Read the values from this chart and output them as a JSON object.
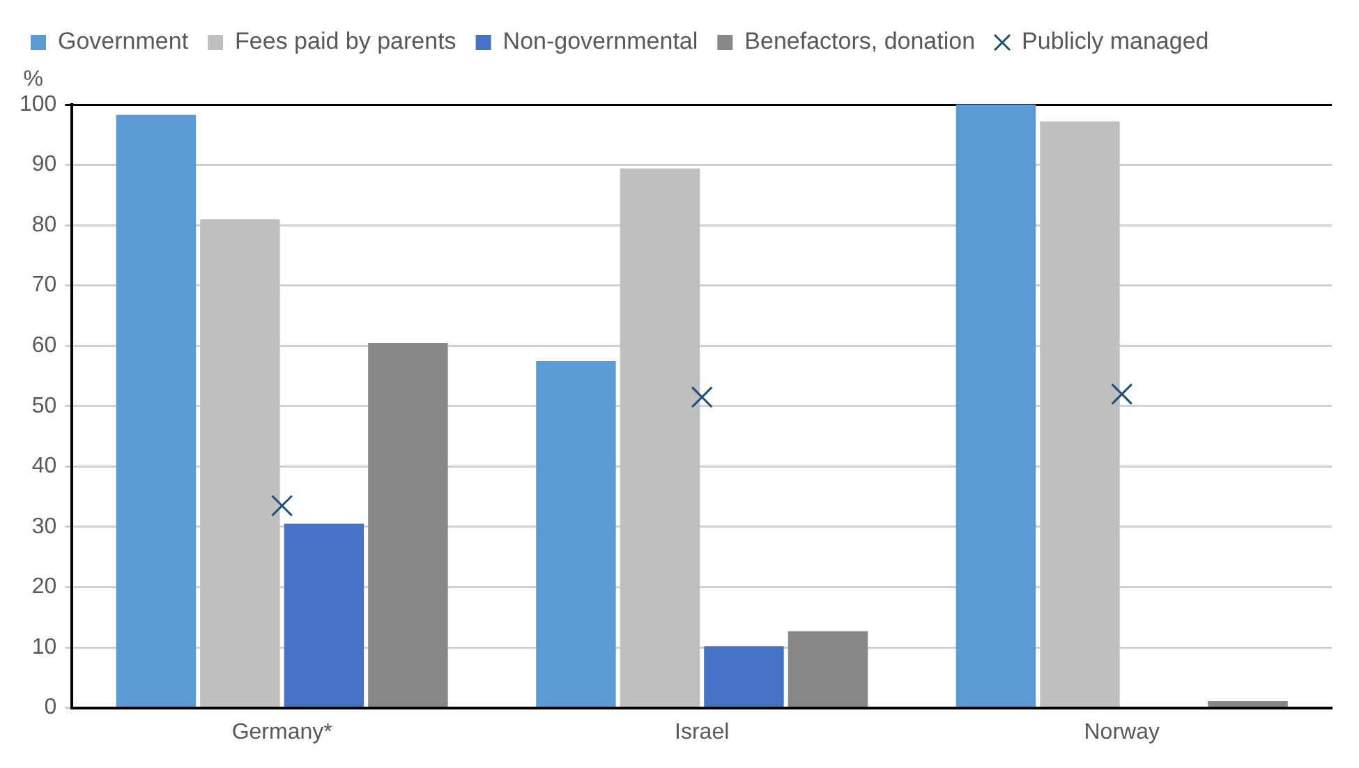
{
  "chart_data": {
    "type": "bar",
    "ylabel": "%",
    "categories": [
      "Germany*",
      "Israel",
      "Norway"
    ],
    "series": [
      {
        "name": "Government",
        "color": "#5b9bd5",
        "values": [
          98.3,
          57.5,
          100
        ]
      },
      {
        "name": "Fees paid by parents",
        "color": "#bfbfbf",
        "values": [
          81,
          89.4,
          97.2
        ]
      },
      {
        "name": "Non-governmental",
        "color": "#4472c4",
        "values": [
          30.5,
          10.2,
          null
        ]
      },
      {
        "name": "Benefactors, donation",
        "color": "#878787",
        "values": [
          60.5,
          12.7,
          1.1
        ]
      },
      {
        "name": "Publicly managed",
        "type": "scatter",
        "marker": "cross",
        "color": "#1f4e79",
        "values": [
          33.5,
          51.5,
          52
        ]
      }
    ],
    "ylim": [
      0,
      100
    ],
    "yticks": [
      0,
      10,
      20,
      30,
      40,
      50,
      60,
      70,
      80,
      90,
      100
    ],
    "grid": "y",
    "legend": "top left"
  }
}
